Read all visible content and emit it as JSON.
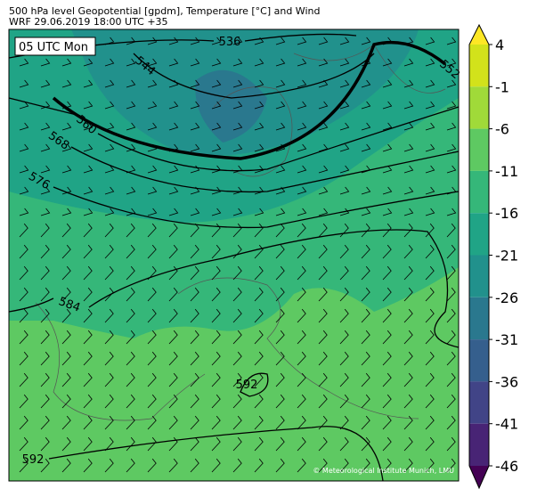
{
  "header": {
    "title": "500 hPa level Geopotential [gpdm], Temperature [°C] and Wind",
    "subtitle": "WRF 29.06.2019 18:00 UTC +35"
  },
  "map": {
    "time_label": "05 UTC Mon",
    "credit": "© Meteorological Institute Munich, LMU",
    "contour_labels": [
      "536",
      "544",
      "552",
      "560",
      "568",
      "576",
      "584",
      "592",
      "592"
    ]
  },
  "colorbar": {
    "ticks": [
      4,
      -1,
      -6,
      -11,
      -16,
      -21,
      -26,
      -31,
      -36,
      -41,
      -46
    ],
    "colors": [
      "#fde725",
      "#d2e21b",
      "#a0da39",
      "#5ec962",
      "#35b779",
      "#20a486",
      "#21918c",
      "#2a788e",
      "#355f8d",
      "#414487",
      "#482475",
      "#440154"
    ]
  }
}
